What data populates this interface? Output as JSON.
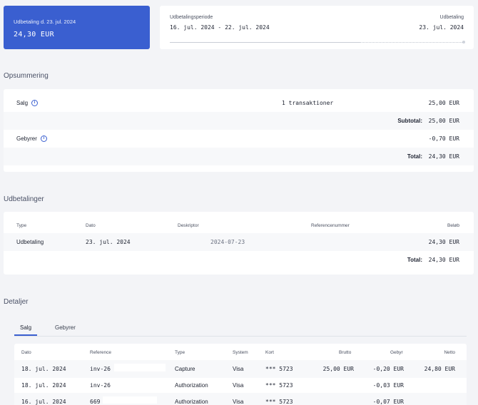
{
  "payout": {
    "label_prefix": "Udbetaling d.",
    "label_date": "23. jul. 2024",
    "amount": "24,30 EUR"
  },
  "period": {
    "label": "Udbetalingsperiode",
    "range": "16. jul. 2024 - 22. jul. 2024",
    "payout_label": "Udbetaling",
    "payout_date": "23. jul. 2024",
    "progress": 0.65
  },
  "summary": {
    "title": "Opsummering",
    "sales_label": "Salg",
    "sales_count": "1 transaktioner",
    "sales_amount": "25,00 EUR",
    "subtotal_label": "Subtotal:",
    "subtotal_amount": "25,00 EUR",
    "fees_label": "Gebyrer",
    "fees_amount": "-0,70 EUR",
    "total_label": "Total:",
    "total_amount": "24,30 EUR"
  },
  "payouts": {
    "title": "Udbetalinger",
    "headers": {
      "type": "Type",
      "date": "Dato",
      "descriptor": "Deskriptor",
      "reference": "Referencenummer",
      "amount": "Beløb"
    },
    "row": {
      "type": "Udbetaling",
      "date": "23. jul. 2024",
      "descriptor": "2024-07-23",
      "reference": "",
      "amount": "24,30 EUR"
    },
    "total_label": "Total:",
    "total_amount": "24,30 EUR"
  },
  "details": {
    "title": "Detaljer",
    "tabs": [
      "Salg",
      "Gebyrer"
    ],
    "headers": {
      "date": "Dato",
      "reference": "Reference",
      "type": "Type",
      "system": "System",
      "card": "Kort",
      "gross": "Brutto",
      "fee": "Gebyr",
      "net": "Netto"
    },
    "rows": [
      {
        "date": "18. jul. 2024",
        "reference": "inv-26",
        "type": "Capture",
        "system": "Visa",
        "card": "*** 5723",
        "gross": "25,00 EUR",
        "fee": "-0,20 EUR",
        "net": "24,80 EUR"
      },
      {
        "date": "18. jul. 2024",
        "reference": "inv-26",
        "type": "Authorization",
        "system": "Visa",
        "card": "*** 5723",
        "gross": "",
        "fee": "-0,03 EUR",
        "net": ""
      },
      {
        "date": "16. jul. 2024",
        "reference": "669",
        "type": "Authorization",
        "system": "Visa",
        "card": "*** 5723",
        "gross": "",
        "fee": "-0,07 EUR",
        "net": ""
      }
    ]
  },
  "colors": {
    "accent": "#3a5fd0",
    "background": "#f3f4f7"
  }
}
